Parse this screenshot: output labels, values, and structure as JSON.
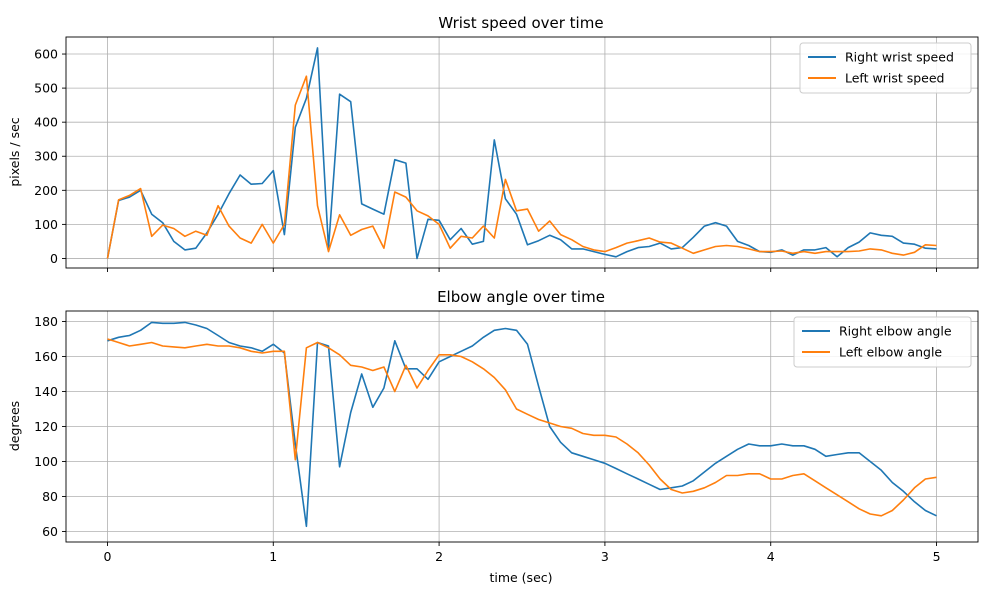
{
  "colors": {
    "right": "#1f77b4",
    "left": "#ff7f0e",
    "grid": "#b0b0b0",
    "axis": "#000000"
  },
  "chart_data": [
    {
      "type": "line",
      "title": "Wrist speed over time",
      "xlabel": "",
      "ylabel": "pixels / sec",
      "xlim": [
        -0.25,
        5.25
      ],
      "ylim": [
        -28,
        650
      ],
      "xticks": [
        0,
        1,
        2,
        3,
        4,
        5
      ],
      "yticks": [
        0,
        100,
        200,
        300,
        400,
        500,
        600
      ],
      "grid": true,
      "legend": "upper right",
      "x_tick_labels_shown": false,
      "series": [
        {
          "name": "Right wrist speed",
          "color": "#1f77b4",
          "x": [
            0,
            0.067,
            0.133,
            0.2,
            0.267,
            0.333,
            0.4,
            0.467,
            0.533,
            0.6,
            0.667,
            0.733,
            0.8,
            0.867,
            0.933,
            1,
            1.067,
            1.133,
            1.2,
            1.267,
            1.333,
            1.4,
            1.467,
            1.533,
            1.6,
            1.667,
            1.733,
            1.8,
            1.867,
            1.933,
            2,
            2.067,
            2.133,
            2.2,
            2.267,
            2.333,
            2.4,
            2.467,
            2.533,
            2.6,
            2.667,
            2.733,
            2.8,
            2.867,
            2.933,
            3,
            3.067,
            3.133,
            3.2,
            3.267,
            3.333,
            3.4,
            3.467,
            3.533,
            3.6,
            3.667,
            3.733,
            3.8,
            3.867,
            3.933,
            4,
            4.067,
            4.133,
            4.2,
            4.267,
            4.333,
            4.4,
            4.467,
            4.533,
            4.6,
            4.667,
            4.733,
            4.8,
            4.867,
            4.933,
            5
          ],
          "y": [
            0,
            170,
            180,
            200,
            130,
            105,
            50,
            25,
            30,
            75,
            130,
            190,
            245,
            218,
            220,
            258,
            70,
            385,
            470,
            618,
            30,
            482,
            460,
            160,
            145,
            130,
            290,
            280,
            0,
            115,
            112,
            55,
            88,
            42,
            50,
            348,
            175,
            130,
            40,
            52,
            68,
            55,
            28,
            28,
            20,
            12,
            5,
            20,
            32,
            35,
            45,
            28,
            32,
            62,
            95,
            105,
            95,
            50,
            38,
            20,
            18,
            25,
            10,
            25,
            25,
            32,
            5,
            32,
            48,
            75,
            68,
            65,
            45,
            42,
            30,
            28
          ]
        },
        {
          "name": "Left wrist speed",
          "color": "#ff7f0e",
          "x": [
            0,
            0.067,
            0.133,
            0.2,
            0.267,
            0.333,
            0.4,
            0.467,
            0.533,
            0.6,
            0.667,
            0.733,
            0.8,
            0.867,
            0.933,
            1,
            1.067,
            1.133,
            1.2,
            1.267,
            1.333,
            1.4,
            1.467,
            1.533,
            1.6,
            1.667,
            1.733,
            1.8,
            1.867,
            1.933,
            2,
            2.067,
            2.133,
            2.2,
            2.267,
            2.333,
            2.4,
            2.467,
            2.533,
            2.6,
            2.667,
            2.733,
            2.8,
            2.867,
            2.933,
            3,
            3.067,
            3.133,
            3.2,
            3.267,
            3.333,
            3.4,
            3.467,
            3.533,
            3.6,
            3.667,
            3.733,
            3.8,
            3.867,
            3.933,
            4,
            4.067,
            4.133,
            4.2,
            4.267,
            4.333,
            4.4,
            4.467,
            4.533,
            4.6,
            4.667,
            4.733,
            4.8,
            4.867,
            4.933,
            5
          ],
          "y": [
            0,
            172,
            185,
            205,
            65,
            98,
            88,
            65,
            80,
            68,
            155,
            95,
            60,
            45,
            100,
            45,
            100,
            450,
            535,
            155,
            20,
            128,
            68,
            85,
            95,
            30,
            195,
            180,
            140,
            125,
            100,
            30,
            65,
            60,
            95,
            60,
            232,
            140,
            145,
            80,
            110,
            70,
            55,
            35,
            25,
            20,
            32,
            45,
            52,
            60,
            48,
            45,
            30,
            15,
            25,
            35,
            38,
            35,
            28,
            20,
            20,
            22,
            15,
            20,
            15,
            20,
            20,
            20,
            22,
            28,
            25,
            15,
            10,
            18,
            40,
            38
          ]
        }
      ]
    },
    {
      "type": "line",
      "title": "Elbow angle over time",
      "xlabel": "time (sec)",
      "ylabel": "degrees",
      "xlim": [
        -0.25,
        5.25
      ],
      "ylim": [
        54,
        186
      ],
      "xticks": [
        0,
        1,
        2,
        3,
        4,
        5
      ],
      "yticks": [
        60,
        80,
        100,
        120,
        140,
        160,
        180
      ],
      "grid": true,
      "legend": "upper right",
      "x_tick_labels_shown": true,
      "series": [
        {
          "name": "Right elbow angle",
          "color": "#1f77b4",
          "x": [
            0,
            0.067,
            0.133,
            0.2,
            0.267,
            0.333,
            0.4,
            0.467,
            0.533,
            0.6,
            0.667,
            0.733,
            0.8,
            0.867,
            0.933,
            1,
            1.067,
            1.133,
            1.2,
            1.267,
            1.333,
            1.4,
            1.467,
            1.533,
            1.6,
            1.667,
            1.733,
            1.8,
            1.867,
            1.933,
            2,
            2.067,
            2.133,
            2.2,
            2.267,
            2.333,
            2.4,
            2.467,
            2.533,
            2.6,
            2.667,
            2.733,
            2.8,
            2.867,
            2.933,
            3,
            3.067,
            3.133,
            3.2,
            3.267,
            3.333,
            3.4,
            3.467,
            3.533,
            3.6,
            3.667,
            3.733,
            3.8,
            3.867,
            3.933,
            4,
            4.067,
            4.133,
            4.2,
            4.267,
            4.333,
            4.4,
            4.467,
            4.533,
            4.6,
            4.667,
            4.733,
            4.8,
            4.867,
            4.933,
            5
          ],
          "y": [
            169,
            171,
            172,
            175,
            179.5,
            179,
            179,
            179.5,
            178,
            176,
            172,
            168,
            166,
            165,
            163,
            167,
            162,
            110,
            63,
            168,
            166,
            97,
            128,
            150,
            131,
            142,
            169,
            153,
            153,
            147,
            157,
            160,
            163,
            166,
            171,
            175,
            176,
            175,
            167,
            143,
            120,
            111,
            105,
            103,
            101,
            99,
            96,
            93,
            90,
            87,
            84,
            85,
            86,
            89,
            94,
            99,
            103,
            107,
            110,
            109,
            109,
            110,
            109,
            109,
            107,
            103,
            104,
            105,
            105,
            100,
            95,
            88,
            83,
            77,
            72,
            69
          ]
        },
        {
          "name": "Left elbow angle",
          "color": "#ff7f0e",
          "x": [
            0,
            0.067,
            0.133,
            0.2,
            0.267,
            0.333,
            0.4,
            0.467,
            0.533,
            0.6,
            0.667,
            0.733,
            0.8,
            0.867,
            0.933,
            1,
            1.067,
            1.133,
            1.2,
            1.267,
            1.333,
            1.4,
            1.467,
            1.533,
            1.6,
            1.667,
            1.733,
            1.8,
            1.867,
            1.933,
            2,
            2.067,
            2.133,
            2.2,
            2.267,
            2.333,
            2.4,
            2.467,
            2.533,
            2.6,
            2.667,
            2.733,
            2.8,
            2.867,
            2.933,
            3,
            3.067,
            3.133,
            3.2,
            3.267,
            3.333,
            3.4,
            3.467,
            3.533,
            3.6,
            3.667,
            3.733,
            3.8,
            3.867,
            3.933,
            4,
            4.067,
            4.133,
            4.2,
            4.267,
            4.333,
            4.4,
            4.467,
            4.533,
            4.6,
            4.667,
            4.733,
            4.8,
            4.867,
            4.933,
            5
          ],
          "y": [
            170,
            168,
            166,
            167,
            168,
            166,
            165.5,
            165,
            166,
            167,
            166,
            166,
            165,
            163,
            162,
            163,
            163,
            101,
            165,
            168,
            165,
            161,
            155,
            154,
            152,
            154,
            140,
            155,
            142,
            152,
            161,
            161,
            160,
            157,
            153,
            148,
            141,
            130,
            127,
            124,
            122,
            120,
            119,
            116,
            115,
            115,
            114,
            110,
            105,
            98,
            90,
            84,
            82,
            83,
            85,
            88,
            92,
            92,
            93,
            93,
            90,
            90,
            92,
            93,
            89,
            85,
            81,
            77,
            73,
            70,
            69,
            72,
            78,
            85,
            90,
            91
          ]
        }
      ]
    }
  ]
}
